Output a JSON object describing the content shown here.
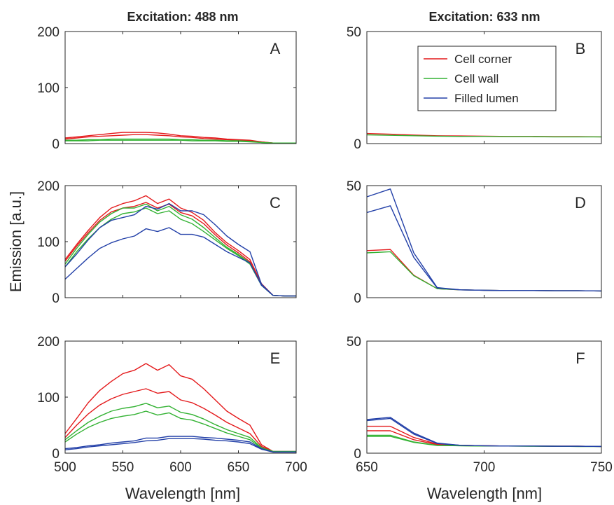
{
  "figure": {
    "ylabel": "Emission [a.u.]",
    "col_titles": [
      "Excitation: 488 nm",
      "Excitation: 633 nm"
    ],
    "xlabels": [
      "Wavelength [nm]",
      "Wavelength [nm]"
    ]
  },
  "legend": {
    "entries": [
      {
        "label": "Cell corner",
        "color": "#e41a1c"
      },
      {
        "label": "Cell wall",
        "color": "#33b233"
      },
      {
        "label": "Filled lumen",
        "color": "#2340a8"
      }
    ]
  },
  "colors": {
    "red": "#e41a1c",
    "green": "#33b233",
    "blue": "#2340a8"
  },
  "chart_data": [
    {
      "letter": "A",
      "type": "line",
      "xlim": [
        500,
        700
      ],
      "ylim": [
        0,
        200
      ],
      "yticks": [
        0,
        100,
        200
      ],
      "xticks": [
        500,
        550,
        600,
        650,
        700
      ],
      "x": [
        500,
        510,
        520,
        530,
        540,
        550,
        560,
        570,
        580,
        590,
        600,
        610,
        620,
        630,
        640,
        650,
        660,
        670,
        680,
        690,
        700
      ],
      "series": [
        {
          "color": "red",
          "values": [
            10,
            12,
            14,
            16,
            18,
            20,
            20,
            20,
            19,
            17,
            14,
            13,
            11,
            10,
            8,
            7,
            6,
            3,
            1,
            1,
            1
          ]
        },
        {
          "color": "red",
          "values": [
            8,
            10,
            12,
            13,
            14,
            15,
            16,
            16,
            15,
            14,
            12,
            11,
            9,
            8,
            7,
            6,
            5,
            3,
            1,
            1,
            1
          ]
        },
        {
          "color": "green",
          "values": [
            6,
            6,
            7,
            7,
            8,
            8,
            8,
            8,
            8,
            8,
            7,
            7,
            6,
            6,
            5,
            5,
            4,
            2,
            1,
            1,
            1
          ]
        },
        {
          "color": "green",
          "values": [
            5,
            5,
            5,
            6,
            6,
            6,
            6,
            6,
            6,
            6,
            6,
            5,
            5,
            5,
            4,
            4,
            3,
            2,
            1,
            1,
            1
          ]
        }
      ]
    },
    {
      "letter": "B",
      "type": "line",
      "xlim": [
        650,
        750
      ],
      "ylim": [
        0,
        50
      ],
      "yticks": [
        0,
        50
      ],
      "xticks": [
        650,
        700,
        750
      ],
      "x": [
        650,
        660,
        670,
        680,
        690,
        700,
        710,
        720,
        730,
        740,
        750
      ],
      "series": [
        {
          "color": "red",
          "values": [
            4.5,
            4.2,
            3.8,
            3.5,
            3.4,
            3.3,
            3.2,
            3.2,
            3.1,
            3.1,
            3.0
          ]
        },
        {
          "color": "green",
          "values": [
            3.9,
            3.7,
            3.5,
            3.3,
            3.2,
            3.2,
            3.1,
            3.1,
            3.0,
            3.0,
            3.0
          ]
        }
      ]
    },
    {
      "letter": "C",
      "type": "line",
      "xlim": [
        500,
        700
      ],
      "ylim": [
        0,
        200
      ],
      "yticks": [
        0,
        100,
        200
      ],
      "xticks": [
        500,
        550,
        600,
        650,
        700
      ],
      "x": [
        500,
        510,
        520,
        530,
        540,
        550,
        560,
        570,
        580,
        590,
        600,
        610,
        620,
        630,
        640,
        650,
        660,
        670,
        680,
        690,
        700
      ],
      "series": [
        {
          "color": "red",
          "values": [
            68,
            95,
            120,
            143,
            160,
            168,
            173,
            182,
            168,
            176,
            160,
            152,
            138,
            116,
            98,
            84,
            68,
            25,
            4,
            3,
            3
          ]
        },
        {
          "color": "red",
          "values": [
            65,
            92,
            116,
            138,
            153,
            160,
            163,
            170,
            160,
            167,
            152,
            146,
            132,
            112,
            94,
            80,
            64,
            24,
            4,
            3,
            3
          ]
        },
        {
          "color": "green",
          "values": [
            60,
            88,
            113,
            135,
            150,
            160,
            160,
            167,
            155,
            163,
            148,
            140,
            125,
            107,
            90,
            77,
            62,
            22,
            4,
            3,
            3
          ]
        },
        {
          "color": "green",
          "values": [
            55,
            82,
            105,
            125,
            140,
            150,
            153,
            160,
            150,
            155,
            140,
            132,
            118,
            103,
            88,
            75,
            60,
            22,
            4,
            3,
            3
          ]
        },
        {
          "color": "blue",
          "values": [
            55,
            78,
            103,
            125,
            138,
            143,
            148,
            163,
            158,
            168,
            155,
            155,
            148,
            130,
            110,
            95,
            82,
            24,
            4,
            3,
            3
          ]
        },
        {
          "color": "blue",
          "values": [
            33,
            52,
            71,
            88,
            98,
            105,
            110,
            123,
            118,
            125,
            113,
            113,
            108,
            95,
            82,
            72,
            62,
            22,
            4,
            3,
            3
          ]
        }
      ]
    },
    {
      "letter": "D",
      "type": "line",
      "xlim": [
        650,
        750
      ],
      "ylim": [
        0,
        50
      ],
      "yticks": [
        0,
        50
      ],
      "xticks": [
        650,
        700,
        750
      ],
      "x": [
        650,
        660,
        670,
        680,
        690,
        700,
        710,
        720,
        730,
        740,
        750
      ],
      "series": [
        {
          "color": "red",
          "values": [
            21,
            21.5,
            10,
            4,
            3.5,
            3.3,
            3.2,
            3.2,
            3.1,
            3.1,
            3.0
          ]
        },
        {
          "color": "green",
          "values": [
            20,
            20.5,
            9.8,
            4,
            3.5,
            3.3,
            3.2,
            3.2,
            3.1,
            3.1,
            3.0
          ]
        },
        {
          "color": "blue",
          "values": [
            45,
            48.5,
            20,
            4.5,
            3.5,
            3.3,
            3.2,
            3.2,
            3.1,
            3.1,
            3.0
          ]
        },
        {
          "color": "blue",
          "values": [
            38,
            41,
            18,
            4.3,
            3.5,
            3.3,
            3.2,
            3.2,
            3.1,
            3.1,
            3.0
          ]
        }
      ]
    },
    {
      "letter": "E",
      "type": "line",
      "xlim": [
        500,
        700
      ],
      "ylim": [
        0,
        200
      ],
      "yticks": [
        0,
        100,
        200
      ],
      "xticks": [
        500,
        550,
        600,
        650,
        700
      ],
      "x": [
        500,
        510,
        520,
        530,
        540,
        550,
        560,
        570,
        580,
        590,
        600,
        610,
        620,
        630,
        640,
        650,
        660,
        670,
        680,
        690,
        700
      ],
      "series": [
        {
          "color": "red",
          "values": [
            35,
            62,
            90,
            112,
            128,
            142,
            148,
            160,
            148,
            158,
            138,
            132,
            115,
            95,
            75,
            62,
            50,
            15,
            3,
            3,
            3
          ]
        },
        {
          "color": "red",
          "values": [
            28,
            50,
            70,
            86,
            97,
            105,
            110,
            115,
            107,
            110,
            95,
            90,
            80,
            68,
            55,
            45,
            35,
            12,
            3,
            3,
            3
          ]
        },
        {
          "color": "green",
          "values": [
            24,
            40,
            55,
            66,
            75,
            80,
            83,
            89,
            81,
            84,
            73,
            69,
            61,
            51,
            42,
            35,
            28,
            10,
            3,
            3,
            3
          ]
        },
        {
          "color": "green",
          "values": [
            20,
            34,
            46,
            55,
            62,
            66,
            69,
            75,
            68,
            72,
            62,
            59,
            52,
            44,
            36,
            30,
            24,
            9,
            3,
            3,
            3
          ]
        },
        {
          "color": "blue",
          "values": [
            8,
            10,
            13,
            15,
            18,
            20,
            22,
            27,
            27,
            30,
            30,
            30,
            28,
            27,
            25,
            23,
            20,
            8,
            2,
            2,
            2
          ]
        },
        {
          "color": "blue",
          "values": [
            6,
            8,
            11,
            13,
            15,
            17,
            19,
            22,
            23,
            26,
            26,
            26,
            25,
            23,
            22,
            20,
            17,
            7,
            2,
            2,
            2
          ]
        }
      ]
    },
    {
      "letter": "F",
      "type": "line",
      "xlim": [
        650,
        750
      ],
      "ylim": [
        0,
        50
      ],
      "yticks": [
        0,
        50
      ],
      "xticks": [
        650,
        700,
        750
      ],
      "x": [
        650,
        660,
        670,
        680,
        690,
        700,
        710,
        720,
        730,
        740,
        750
      ],
      "series": [
        {
          "color": "red",
          "values": [
            12,
            12,
            7,
            4,
            3.5,
            3.3,
            3.2,
            3.2,
            3.1,
            3.1,
            3.0
          ]
        },
        {
          "color": "red",
          "values": [
            10,
            10,
            6,
            3.8,
            3.5,
            3.3,
            3.2,
            3.2,
            3.1,
            3.1,
            3.0
          ]
        },
        {
          "color": "green",
          "values": [
            8,
            8,
            5,
            3.5,
            3.3,
            3.2,
            3.2,
            3.1,
            3.1,
            3.0,
            3.0
          ]
        },
        {
          "color": "green",
          "values": [
            7.5,
            7.5,
            4.8,
            3.4,
            3.3,
            3.2,
            3.2,
            3.1,
            3.1,
            3.0,
            3.0
          ]
        },
        {
          "color": "blue",
          "values": [
            15,
            16,
            9,
            4.5,
            3.5,
            3.3,
            3.2,
            3.2,
            3.1,
            3.1,
            3.0
          ]
        },
        {
          "color": "blue",
          "values": [
            14.5,
            15.5,
            8.5,
            4.3,
            3.5,
            3.3,
            3.2,
            3.2,
            3.1,
            3.1,
            3.0
          ]
        }
      ]
    }
  ]
}
